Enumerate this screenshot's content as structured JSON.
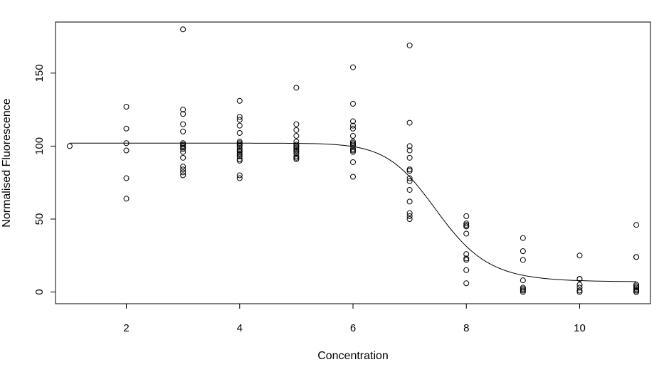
{
  "chart_data": {
    "type": "scatter",
    "title": "",
    "xlabel": "Concentration",
    "ylabel": "Normalised Fluorescence",
    "xlim": [
      0.75,
      11.25
    ],
    "ylim": [
      -8,
      185
    ],
    "x_ticks": [
      2,
      4,
      6,
      8,
      10
    ],
    "y_ticks": [
      0,
      50,
      100,
      150
    ],
    "grid": false,
    "legend": "none",
    "points": {
      "x": [
        1,
        2,
        2,
        2,
        2,
        2,
        2,
        3,
        3,
        3,
        3,
        3,
        3,
        3,
        3,
        3,
        3,
        3,
        3,
        3,
        3,
        3,
        3,
        4,
        4,
        4,
        4,
        4,
        4,
        4,
        4,
        4,
        4,
        4,
        4,
        4,
        4,
        4,
        4,
        4,
        4,
        4,
        4,
        5,
        5,
        5,
        5,
        5,
        5,
        5,
        5,
        5,
        5,
        5,
        5,
        5,
        5,
        5,
        5,
        6,
        6,
        6,
        6,
        6,
        6,
        6,
        6,
        6,
        6,
        6,
        6,
        6,
        6,
        6,
        6,
        7,
        7,
        7,
        7,
        7,
        7,
        7,
        7,
        7,
        7,
        7,
        7,
        7,
        7,
        7,
        8,
        8,
        8,
        8,
        8,
        8,
        8,
        8,
        8,
        8,
        8,
        9,
        9,
        9,
        9,
        9,
        9,
        9,
        9,
        9,
        10,
        10,
        10,
        10,
        10,
        10,
        10,
        11,
        11,
        11,
        11,
        11,
        11,
        11,
        11,
        11,
        11,
        11
      ],
      "y": [
        100,
        127,
        112,
        102,
        97,
        78,
        64,
        180,
        125,
        122,
        115,
        110,
        102,
        100,
        98,
        96,
        92,
        86,
        84,
        82,
        80,
        101,
        99,
        131,
        120,
        118,
        114,
        109,
        103,
        102,
        101,
        100,
        98,
        97,
        96,
        94,
        91,
        90,
        80,
        78,
        95,
        100,
        93,
        140,
        115,
        111,
        107,
        103,
        100,
        98,
        97,
        96,
        95,
        93,
        91,
        100,
        92,
        99,
        101,
        154,
        129,
        117,
        114,
        112,
        107,
        102,
        101,
        100,
        98,
        97,
        96,
        89,
        79,
        101,
        103,
        169,
        116,
        100,
        97,
        92,
        84,
        83,
        78,
        76,
        70,
        62,
        54,
        52,
        50,
        84,
        52,
        47,
        45,
        40,
        26,
        23,
        15,
        6,
        46,
        45,
        22,
        37,
        28,
        22,
        8,
        3,
        2,
        1,
        0,
        2,
        25,
        9,
        5,
        3,
        1,
        0,
        9,
        46,
        24,
        24,
        5,
        4,
        3,
        2,
        1,
        1,
        0,
        0
      ]
    },
    "fit_curve": {
      "model": "logistic",
      "top": 102,
      "bottom": 7,
      "ec50": 7.5,
      "slope": 5.5,
      "x_range": [
        1,
        11
      ]
    }
  }
}
